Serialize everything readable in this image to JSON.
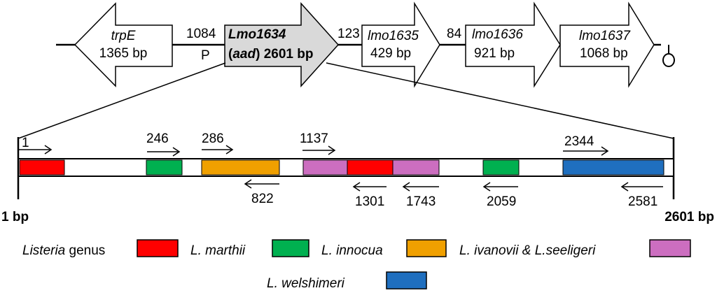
{
  "genes": {
    "trpE": {
      "name": "trpE",
      "size": "1365 bp"
    },
    "lmo1634": {
      "name": "Lmo1634",
      "alias": "aad",
      "size": "2601 bp"
    },
    "lmo1635": {
      "name": "lmo1635",
      "size": "429 bp"
    },
    "lmo1636": {
      "name": "lmo1636",
      "size": "921 bp"
    },
    "lmo1637": {
      "name": "lmo1637",
      "size": "1068 bp"
    }
  },
  "intergenic": {
    "trpE_lmo1634": "1084",
    "lmo1634_lmo1635": "123",
    "lmo1635_lmo1636": "84"
  },
  "promoter_label": "P",
  "colors": {
    "listeria": "#ff0000",
    "marthii": "#00b050",
    "innocua": "#f0a000",
    "ivanovii": "#cc6ec0",
    "welshimeri": "#1f6fbf",
    "highlight_gene": "#d9d9d9"
  },
  "scale": {
    "start": "1 bp",
    "end": "2601 bp"
  },
  "forward_primers": [
    "1",
    "246",
    "286",
    "1137",
    "2344"
  ],
  "reverse_primers": [
    "822",
    "1301",
    "1743",
    "2059",
    "2581"
  ],
  "legend": {
    "listeria_a": "Listeria",
    "listeria_b": " genus",
    "marthii": "L. marthii",
    "innocua": "L. innocua",
    "ivanovii": "L. ivanovii & L.seeligeri",
    "welshimeri": "L. welshimeri"
  }
}
